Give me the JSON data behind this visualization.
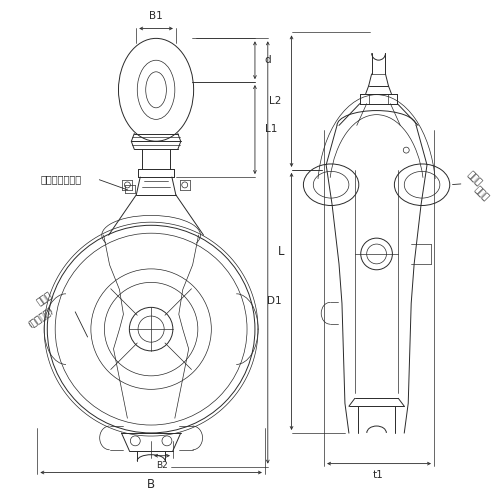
{
  "bg_color": "#ffffff",
  "line_color": "#2a2a2a",
  "dim_color": "#2a2a2a",
  "thin_line": 0.5,
  "thick_line": 0.9,
  "medium_line": 0.7,
  "font_size": 7.5,
  "font_size_small": 6.5,
  "grease_nipple_label": "グリスニップル",
  "size_label1": "サイズ",
  "size_label2": "(シーブ径)",
  "rope_label1": "ロープ",
  "rope_label2": "最大径"
}
